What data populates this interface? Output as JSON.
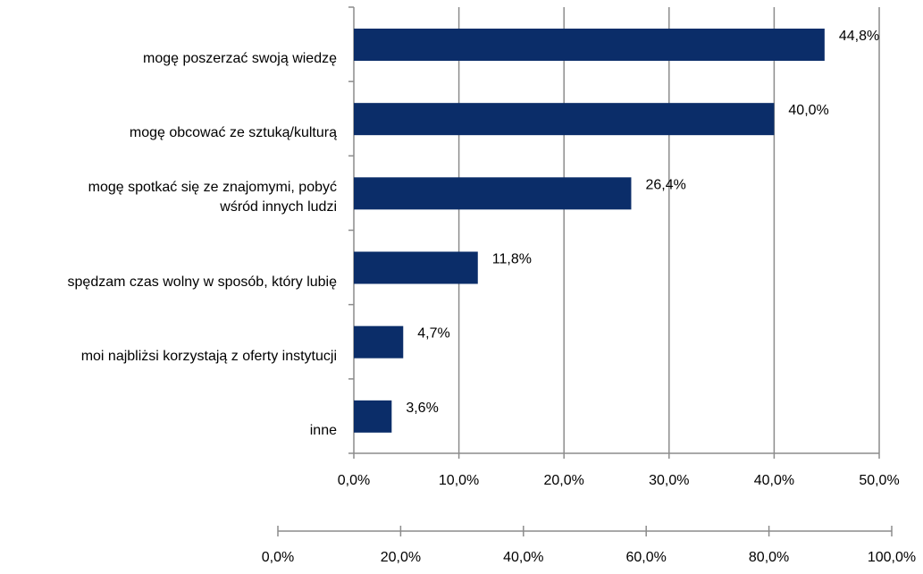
{
  "chart_data": [
    {
      "type": "bar",
      "orientation": "horizontal",
      "categories": [
        "mogę poszerzać swoją wiedzę",
        "mogę obcować ze sztuką/kulturą",
        "mogę spotkać się ze znajomymi, pobyć wśród innych ludzi",
        "spędzam czas wolny w sposób, który lubię",
        "moi najbliżsi korzystają z oferty instytucji",
        "inne"
      ],
      "category_lines": [
        [
          "mogę poszerzać swoją wiedzę"
        ],
        [
          "mogę obcować ze sztuką/kulturą"
        ],
        [
          "mogę spotkać się ze znajomymi, pobyć",
          "wśród innych ludzi"
        ],
        [
          "spędzam czas wolny w sposób, który lubię"
        ],
        [
          "moi najbliżsi korzystają z oferty instytucji"
        ],
        [
          "inne"
        ]
      ],
      "values": [
        44.8,
        40.0,
        26.4,
        11.8,
        4.7,
        3.6
      ],
      "value_labels": [
        "44,8%",
        "40,0%",
        "26,4%",
        "11,8%",
        "4,7%",
        "3,6%"
      ],
      "xlim": [
        0,
        50
      ],
      "ticks": [
        0,
        10,
        20,
        30,
        40,
        50
      ],
      "tick_labels": [
        "0,0%",
        "10,0%",
        "20,0%",
        "30,0%",
        "40,0%",
        "50,0%"
      ],
      "grid": true,
      "bar_color": "#0b2d69",
      "grid_color": "#8c8c8c"
    },
    {
      "type": "axis",
      "xlim": [
        0,
        100
      ],
      "ticks": [
        0,
        20,
        40,
        60,
        80,
        100
      ],
      "tick_labels": [
        "0,0%",
        "20,0%",
        "40,0%",
        "60,0%",
        "80,0%",
        "100,0%"
      ]
    }
  ]
}
